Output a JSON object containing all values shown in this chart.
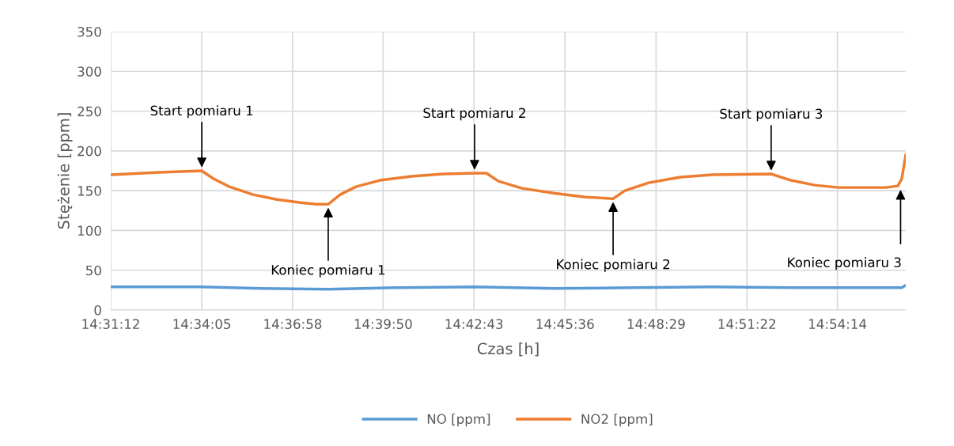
{
  "chart_data": {
    "type": "line",
    "xlabel": "Czas [h]",
    "ylabel": "Stężenie [ppm]",
    "xlim": [
      14.52,
      14.94
    ],
    "xticks": [
      {
        "value": 14.52,
        "label": "14:31:12"
      },
      {
        "value": 14.5681,
        "label": "14:34:05"
      },
      {
        "value": 14.6161,
        "label": "14:36:58"
      },
      {
        "value": 14.6639,
        "label": "14:39:50"
      },
      {
        "value": 14.7119,
        "label": "14:42:43"
      },
      {
        "value": 14.76,
        "label": "14:45:36"
      },
      {
        "value": 14.8081,
        "label": "14:48:29"
      },
      {
        "value": 14.8561,
        "label": "14:51:22"
      },
      {
        "value": 14.9039,
        "label": "14:54:14"
      }
    ],
    "ylim": [
      0,
      350
    ],
    "yticks": [
      0,
      50,
      100,
      150,
      200,
      250,
      300,
      350
    ],
    "grid": true,
    "legend": "bottom",
    "marker": "none",
    "line_style": "solid",
    "series": [
      {
        "name": "NO [ppm]",
        "color": "#5b9bd5",
        "x": [
          14.52,
          14.5681,
          14.5994,
          14.6349,
          14.6704,
          14.7122,
          14.754,
          14.7958,
          14.8376,
          14.8794,
          14.9379,
          14.94
        ],
        "values": [
          29,
          29,
          27,
          26,
          28,
          29,
          27,
          28,
          29,
          28,
          28,
          31
        ]
      },
      {
        "name": "NO2 [ppm]",
        "color": "#ed7d31",
        "x": [
          14.52,
          14.5451,
          14.5681,
          14.5743,
          14.5827,
          14.5952,
          14.6078,
          14.6203,
          14.6287,
          14.6349,
          14.6412,
          14.6495,
          14.6621,
          14.6788,
          14.6955,
          14.7122,
          14.7185,
          14.7248,
          14.7373,
          14.754,
          14.7707,
          14.7854,
          14.7916,
          14.8042,
          14.8209,
          14.8376,
          14.8689,
          14.8794,
          14.8919,
          14.9045,
          14.9295,
          14.9358,
          14.9379,
          14.94
        ],
        "values": [
          170,
          173,
          175,
          165,
          155,
          145,
          139,
          135,
          133,
          133,
          145,
          155,
          163,
          168,
          171,
          172,
          172,
          162,
          153,
          147,
          142,
          140,
          150,
          160,
          167,
          170,
          171,
          163,
          157,
          154,
          154,
          156,
          165,
          195
        ]
      }
    ],
    "annotations": [
      {
        "text": "Start pomiaru 1",
        "x": 14.5681,
        "y": 175
      },
      {
        "text": "Koniec pomiaru 1",
        "x": 14.6349,
        "y": 133
      },
      {
        "text": "Start pomiaru 2",
        "x": 14.7122,
        "y": 172
      },
      {
        "text": "Koniec pomiaru 2",
        "x": 14.7854,
        "y": 140
      },
      {
        "text": "Start pomiaru 3",
        "x": 14.8689,
        "y": 171
      },
      "Koniec pomiaru 3"
    ]
  }
}
